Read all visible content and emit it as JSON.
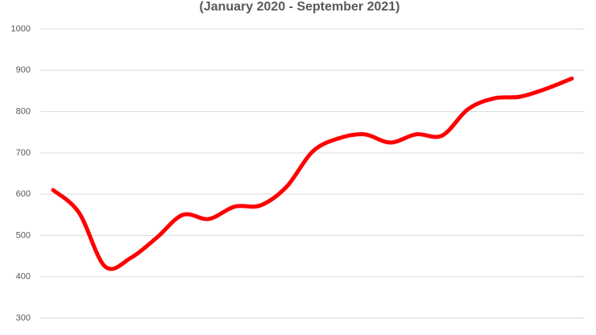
{
  "chart_data": {
    "type": "line",
    "subtitle": "(January 2020 - September 2021)",
    "values": [
      610,
      555,
      425,
      446,
      495,
      550,
      540,
      570,
      573,
      618,
      703,
      735,
      745,
      725,
      745,
      742,
      806,
      832,
      836,
      855,
      880
    ],
    "color": "#ff0000",
    "ylim": [
      300,
      1000
    ],
    "yticks": [
      300,
      400,
      500,
      600,
      700,
      800,
      900,
      1000
    ],
    "grid": true,
    "smooth": true
  }
}
